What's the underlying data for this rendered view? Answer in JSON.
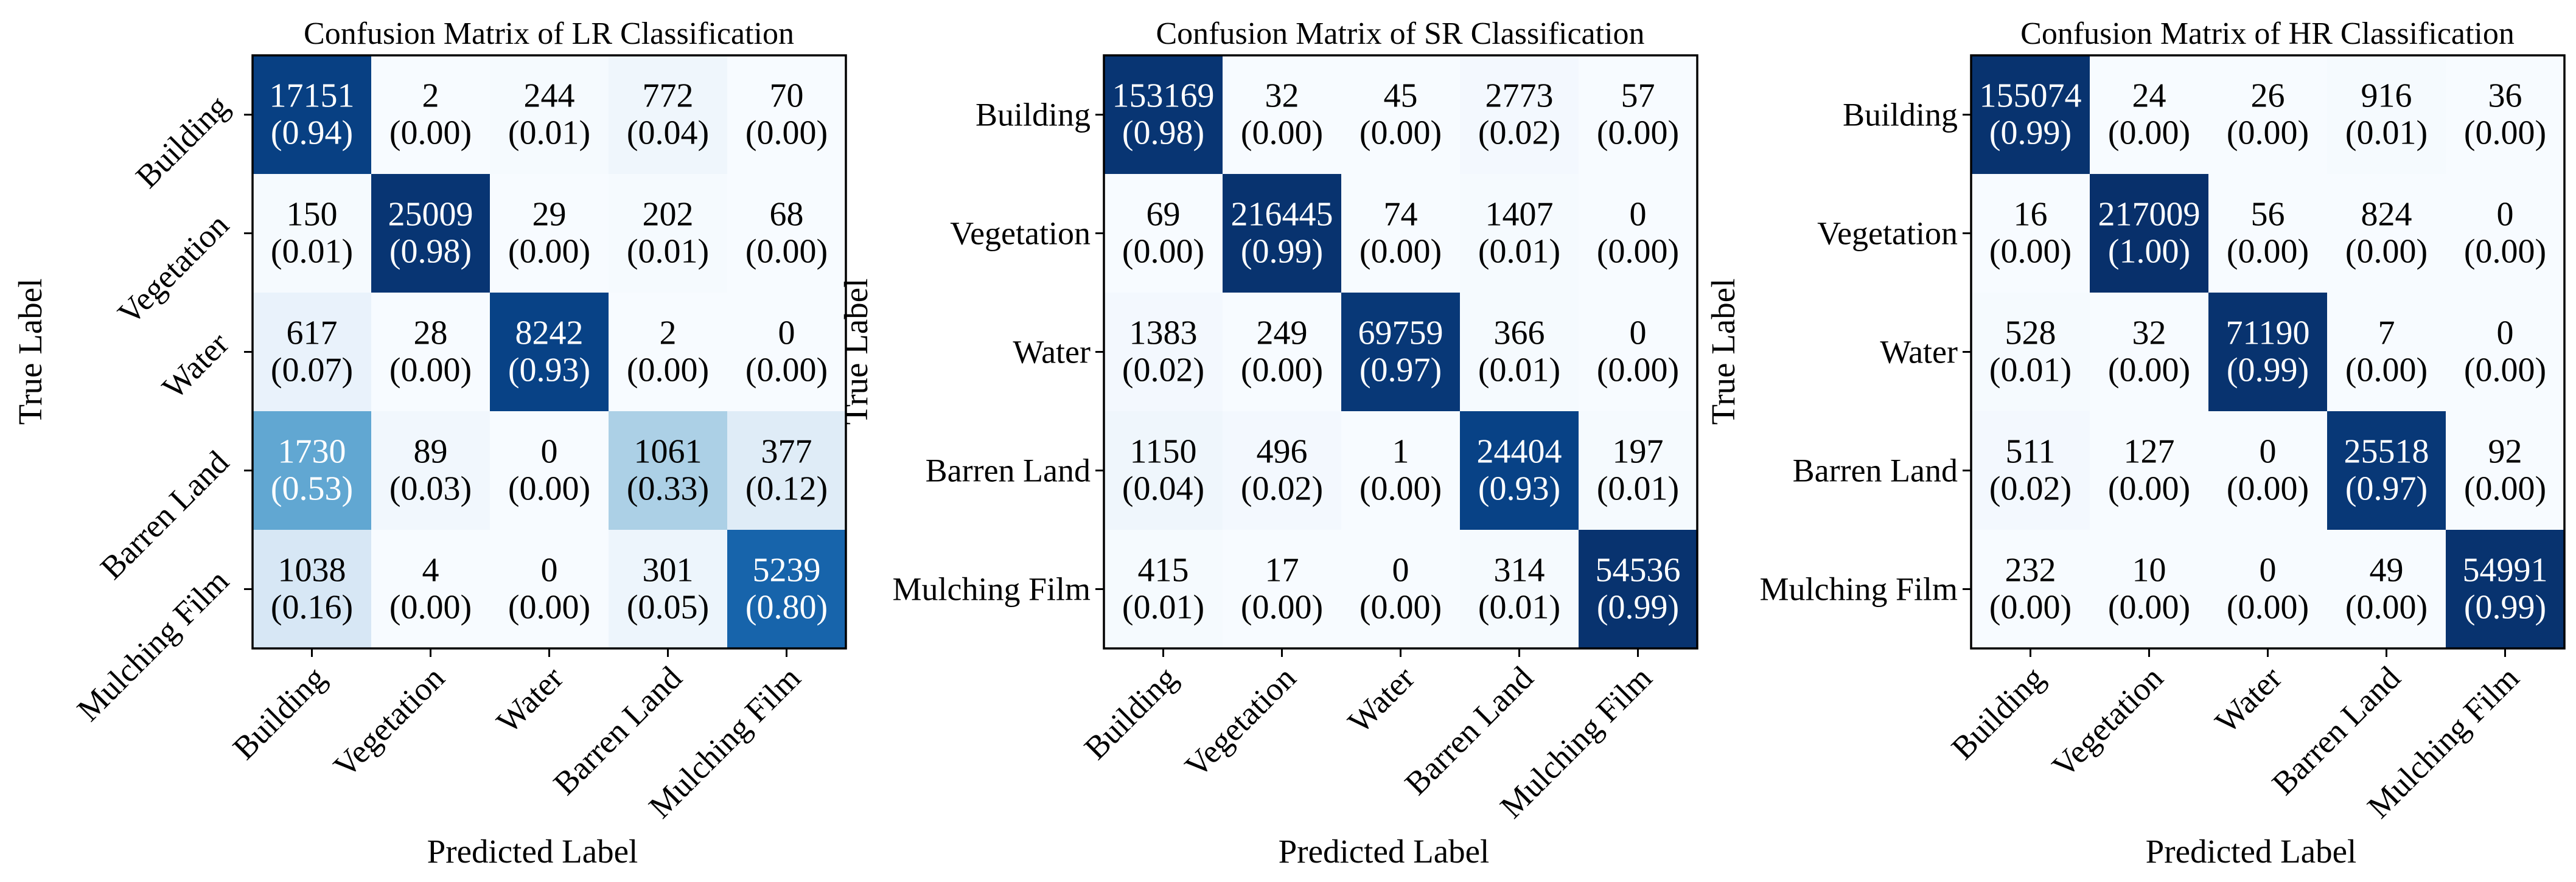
{
  "figure": {
    "x_label": "Predicted Label",
    "y_label": "True Label",
    "classes": [
      "Building",
      "Vegetation",
      "Water",
      "Barren Land",
      "Mulching Film"
    ]
  },
  "colors": {
    "colormap": "Blues",
    "low": "#f7fbff",
    "high": "#08306b",
    "text_dark": "#000000",
    "text_light": "#ffffff"
  },
  "chart_data": [
    {
      "type": "heatmap",
      "title": "Confusion Matrix of LR Classification",
      "xlabel": "Predicted Label",
      "ylabel": "True Label",
      "x_categories": [
        "Building",
        "Vegetation",
        "Water",
        "Barren Land",
        "Mulching Film"
      ],
      "y_categories": [
        "Building",
        "Vegetation",
        "Water",
        "Barren Land",
        "Mulching Film"
      ],
      "counts": [
        [
          17151,
          2,
          244,
          772,
          70
        ],
        [
          150,
          25009,
          29,
          202,
          68
        ],
        [
          617,
          28,
          8242,
          2,
          0
        ],
        [
          1730,
          89,
          0,
          1061,
          377
        ],
        [
          1038,
          4,
          0,
          301,
          5239
        ]
      ],
      "ratios": [
        [
          "0.94",
          "0.00",
          "0.01",
          "0.04",
          "0.00"
        ],
        [
          "0.01",
          "0.98",
          "0.00",
          "0.01",
          "0.00"
        ],
        [
          "0.07",
          "0.00",
          "0.93",
          "0.00",
          "0.00"
        ],
        [
          "0.53",
          "0.03",
          "0.00",
          "0.33",
          "0.12"
        ],
        [
          "0.16",
          "0.00",
          "0.00",
          "0.05",
          "0.80"
        ]
      ],
      "y_tick_rotation": 45
    },
    {
      "type": "heatmap",
      "title": "Confusion Matrix of SR Classification",
      "xlabel": "Predicted Label",
      "ylabel": "True Label",
      "x_categories": [
        "Building",
        "Vegetation",
        "Water",
        "Barren Land",
        "Mulching Film"
      ],
      "y_categories": [
        "Building",
        "Vegetation",
        "Water",
        "Barren Land",
        "Mulching Film"
      ],
      "counts": [
        [
          153169,
          32,
          45,
          2773,
          57
        ],
        [
          69,
          216445,
          74,
          1407,
          0
        ],
        [
          1383,
          249,
          69759,
          366,
          0
        ],
        [
          1150,
          496,
          1,
          24404,
          197
        ],
        [
          415,
          17,
          0,
          314,
          54536
        ]
      ],
      "ratios": [
        [
          "0.98",
          "0.00",
          "0.00",
          "0.02",
          "0.00"
        ],
        [
          "0.00",
          "0.99",
          "0.00",
          "0.01",
          "0.00"
        ],
        [
          "0.02",
          "0.00",
          "0.97",
          "0.01",
          "0.00"
        ],
        [
          "0.04",
          "0.02",
          "0.00",
          "0.93",
          "0.01"
        ],
        [
          "0.01",
          "0.00",
          "0.00",
          "0.01",
          "0.99"
        ]
      ],
      "y_tick_rotation": 0
    },
    {
      "type": "heatmap",
      "title": "Confusion Matrix of HR Classification",
      "xlabel": "Predicted Label",
      "ylabel": "True Label",
      "x_categories": [
        "Building",
        "Vegetation",
        "Water",
        "Barren Land",
        "Mulching Film"
      ],
      "y_categories": [
        "Building",
        "Vegetation",
        "Water",
        "Barren Land",
        "Mulching Film"
      ],
      "counts": [
        [
          155074,
          24,
          26,
          916,
          36
        ],
        [
          16,
          217009,
          56,
          824,
          0
        ],
        [
          528,
          32,
          71190,
          7,
          0
        ],
        [
          511,
          127,
          0,
          25518,
          92
        ],
        [
          232,
          10,
          0,
          49,
          54991
        ]
      ],
      "ratios": [
        [
          "0.99",
          "0.00",
          "0.00",
          "0.01",
          "0.00"
        ],
        [
          "0.00",
          "1.00",
          "0.00",
          "0.00",
          "0.00"
        ],
        [
          "0.01",
          "0.00",
          "0.99",
          "0.00",
          "0.00"
        ],
        [
          "0.02",
          "0.00",
          "0.00",
          "0.97",
          "0.00"
        ],
        [
          "0.00",
          "0.00",
          "0.00",
          "0.00",
          "0.99"
        ]
      ],
      "y_tick_rotation": 0
    }
  ]
}
